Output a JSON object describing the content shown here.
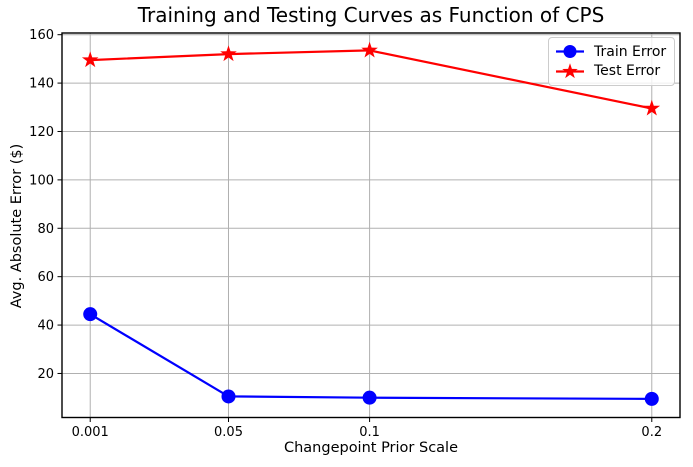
{
  "chart_data": {
    "type": "line",
    "title": "Training and Testing Curves as Function of CPS",
    "xlabel": "Changepoint Prior Scale",
    "ylabel": "Avg. Absolute Error ($)",
    "x": [
      0.001,
      0.05,
      0.1,
      0.2
    ],
    "x_tick_labels": [
      "0.001",
      "0.05",
      "0.1",
      "0.2"
    ],
    "y_ticks": [
      20,
      40,
      60,
      80,
      100,
      120,
      140,
      160
    ],
    "xlim": [
      -0.009,
      0.21
    ],
    "ylim": [
      1.8,
      160.7
    ],
    "grid": true,
    "grid_color": "#b0b0b0",
    "axis_color": "#000000",
    "legend": {
      "position": "upper right",
      "border_color": "#cccccc",
      "background": "#ffffff"
    },
    "series": [
      {
        "name": "Train Error",
        "color": "#0000ff",
        "marker": "circle",
        "line_style": "solid",
        "values": [
          44.5,
          10.5,
          10.0,
          9.5
        ]
      },
      {
        "name": "Test Error",
        "color": "#ff0000",
        "marker": "star",
        "line_style": "solid",
        "values": [
          149.5,
          152.0,
          153.5,
          129.5
        ]
      }
    ]
  }
}
